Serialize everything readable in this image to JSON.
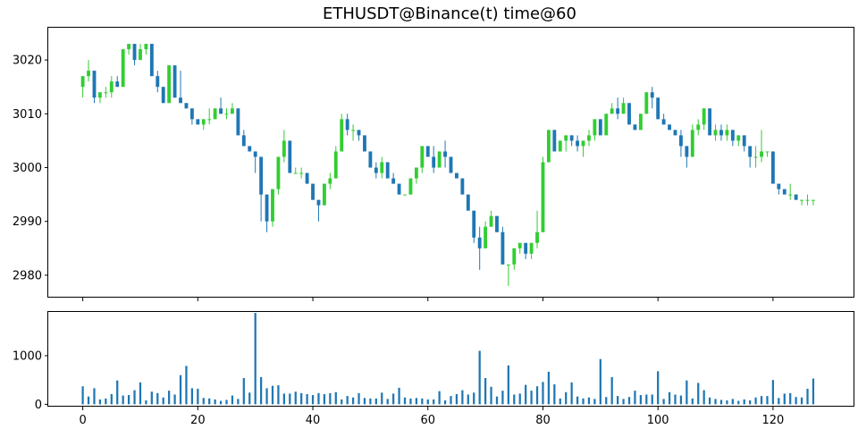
{
  "chart_data": {
    "type": "candlestick",
    "title": "ETHUSDT@Binance(t) time@60",
    "colors": {
      "up": "#32cd32",
      "down": "#1f77b4",
      "volume": "#1f77b4"
    },
    "price_axis": {
      "ylim": [
        2976,
        3026
      ],
      "ticks": [
        2980,
        2990,
        3000,
        3010,
        3020
      ]
    },
    "volume_axis": {
      "ylim": [
        -30,
        1900
      ],
      "ticks": [
        0,
        1000
      ]
    },
    "x_axis": {
      "xlim": [
        -6,
        134
      ],
      "ticks": [
        0,
        20,
        40,
        60,
        80,
        100,
        120
      ]
    },
    "grid": false,
    "candles_ohlc": [
      [
        3015,
        3017,
        3013,
        3017
      ],
      [
        3017,
        3020,
        3016,
        3018
      ],
      [
        3018,
        3018,
        3012,
        3013
      ],
      [
        3013,
        3014,
        3012,
        3014
      ],
      [
        3014,
        3015,
        3013,
        3014
      ],
      [
        3014,
        3017,
        3013,
        3016
      ],
      [
        3016,
        3017,
        3015,
        3015
      ],
      [
        3015,
        3022,
        3015,
        3022
      ],
      [
        3022,
        3023,
        3021,
        3023
      ],
      [
        3023,
        3023,
        3019,
        3020
      ],
      [
        3020,
        3023,
        3020,
        3022
      ],
      [
        3022,
        3023,
        3021,
        3023
      ],
      [
        3023,
        3023,
        3017,
        3017
      ],
      [
        3017,
        3018,
        3014,
        3015
      ],
      [
        3015,
        3015,
        3012,
        3012
      ],
      [
        3012,
        3019,
        3012,
        3019
      ],
      [
        3019,
        3019,
        3013,
        3013
      ],
      [
        3013,
        3018,
        3012,
        3012
      ],
      [
        3012,
        3012,
        3011,
        3011
      ],
      [
        3011,
        3011,
        3008,
        3009
      ],
      [
        3009,
        3009,
        3008,
        3008
      ],
      [
        3008,
        3009,
        3007,
        3009
      ],
      [
        3009,
        3011,
        3008,
        3009
      ],
      [
        3009,
        3011,
        3009,
        3011
      ],
      [
        3011,
        3013,
        3010,
        3010
      ],
      [
        3010,
        3011,
        3009,
        3010
      ],
      [
        3010,
        3012,
        3010,
        3011
      ],
      [
        3011,
        3011,
        3006,
        3006
      ],
      [
        3006,
        3007,
        3004,
        3004
      ],
      [
        3004,
        3004,
        3003,
        3003
      ],
      [
        3003,
        3003,
        2999,
        3002
      ],
      [
        3002,
        3002,
        2990,
        2995
      ],
      [
        2995,
        2995,
        2988,
        2990
      ],
      [
        2990,
        2996,
        2989,
        2996
      ],
      [
        2996,
        3002,
        2995,
        3002
      ],
      [
        3002,
        3007,
        3001,
        3005
      ],
      [
        3005,
        3005,
        2999,
        2999
      ],
      [
        2999,
        3000,
        2999,
        2999
      ],
      [
        2999,
        3000,
        2998,
        2999
      ],
      [
        2999,
        2999,
        2997,
        2997
      ],
      [
        2997,
        2997,
        2994,
        2994
      ],
      [
        2994,
        2994,
        2990,
        2993
      ],
      [
        2993,
        2997,
        2993,
        2997
      ],
      [
        2997,
        2999,
        2996,
        2998
      ],
      [
        2998,
        3004,
        2998,
        3003
      ],
      [
        3003,
        3010,
        3003,
        3009
      ],
      [
        3009,
        3010,
        3006,
        3007
      ],
      [
        3007,
        3008,
        3005,
        3007
      ],
      [
        3007,
        3007,
        3005,
        3006
      ],
      [
        3006,
        3006,
        3003,
        3003
      ],
      [
        3003,
        3003,
        3000,
        3000
      ],
      [
        3000,
        3001,
        2998,
        2999
      ],
      [
        2999,
        3002,
        2998,
        3001
      ],
      [
        3001,
        3001,
        2998,
        2998
      ],
      [
        2998,
        2999,
        2997,
        2997
      ],
      [
        2997,
        2997,
        2995,
        2995
      ],
      [
        2995,
        2995,
        2995,
        2995
      ],
      [
        2995,
        2998,
        2995,
        2998
      ],
      [
        2998,
        3000,
        2997,
        3000
      ],
      [
        3000,
        3004,
        2999,
        3004
      ],
      [
        3004,
        3004,
        3002,
        3002
      ],
      [
        3002,
        3004,
        2999,
        3000
      ],
      [
        3000,
        3003,
        3000,
        3003
      ],
      [
        3003,
        3005,
        3000,
        3002
      ],
      [
        3002,
        3002,
        2999,
        2999
      ],
      [
        2999,
        2999,
        2998,
        2998
      ],
      [
        2998,
        2998,
        2995,
        2995
      ],
      [
        2995,
        2995,
        2992,
        2992
      ],
      [
        2992,
        2992,
        2986,
        2987
      ],
      [
        2987,
        2989,
        2981,
        2985
      ],
      [
        2985,
        2990,
        2985,
        2989
      ],
      [
        2989,
        2992,
        2990,
        2991
      ],
      [
        2991,
        2991,
        2988,
        2988
      ],
      [
        2988,
        2989,
        2982,
        2982
      ],
      [
        2982,
        2982,
        2978,
        2982
      ],
      [
        2982,
        2985,
        2981,
        2985
      ],
      [
        2985,
        2986,
        2984,
        2986
      ],
      [
        2986,
        2986,
        2983,
        2984
      ],
      [
        2984,
        2986,
        2983,
        2986
      ],
      [
        2986,
        2992,
        2985,
        2988
      ],
      [
        2988,
        3002,
        2988,
        3001
      ],
      [
        3001,
        3007,
        3001,
        3007
      ],
      [
        3007,
        3007,
        3003,
        3003
      ],
      [
        3003,
        3005,
        3003,
        3005
      ],
      [
        3005,
        3006,
        3003,
        3006
      ],
      [
        3006,
        3006,
        3004,
        3005
      ],
      [
        3005,
        3006,
        3003,
        3004
      ],
      [
        3004,
        3005,
        3002,
        3005
      ],
      [
        3005,
        3007,
        3004,
        3006
      ],
      [
        3006,
        3009,
        3005,
        3009
      ],
      [
        3009,
        3009,
        3006,
        3006
      ],
      [
        3006,
        3010,
        3006,
        3010
      ],
      [
        3010,
        3012,
        3010,
        3011
      ],
      [
        3011,
        3013,
        3009,
        3010
      ],
      [
        3010,
        3013,
        3010,
        3012
      ],
      [
        3012,
        3012,
        3008,
        3008
      ],
      [
        3008,
        3008,
        3007,
        3007
      ],
      [
        3007,
        3010,
        3007,
        3010
      ],
      [
        3010,
        3014,
        3010,
        3014
      ],
      [
        3014,
        3015,
        3011,
        3013
      ],
      [
        3013,
        3013,
        3009,
        3009
      ],
      [
        3009,
        3010,
        3008,
        3008
      ],
      [
        3008,
        3008,
        3007,
        3007
      ],
      [
        3007,
        3007,
        3006,
        3006
      ],
      [
        3006,
        3007,
        3002,
        3004
      ],
      [
        3004,
        3004,
        3000,
        3002
      ],
      [
        3002,
        3008,
        3002,
        3007
      ],
      [
        3007,
        3009,
        3006,
        3008
      ],
      [
        3008,
        3011,
        3007,
        3011
      ],
      [
        3011,
        3011,
        3006,
        3006
      ],
      [
        3006,
        3008,
        3005,
        3007
      ],
      [
        3007,
        3008,
        3005,
        3006
      ],
      [
        3006,
        3008,
        3005,
        3007
      ],
      [
        3007,
        3007,
        3004,
        3005
      ],
      [
        3005,
        3006,
        3004,
        3006
      ],
      [
        3006,
        3006,
        3003,
        3004
      ],
      [
        3004,
        3004,
        3000,
        3002
      ],
      [
        3002,
        3004,
        3000,
        3002
      ],
      [
        3002,
        3007,
        3001,
        3003
      ],
      [
        3003,
        3003,
        3002,
        3003
      ],
      [
        3003,
        3003,
        2997,
        2997
      ],
      [
        2997,
        2997,
        2995,
        2996
      ],
      [
        2996,
        2996,
        2995,
        2995
      ],
      [
        2995,
        2997,
        2994,
        2995
      ],
      [
        2995,
        2995,
        2994,
        2994
      ],
      [
        2994,
        2994,
        2993,
        2994
      ],
      [
        2994,
        2995,
        2993,
        2994
      ],
      [
        2994,
        2994,
        2993,
        2994
      ]
    ],
    "volume": [
      370,
      160,
      330,
      100,
      120,
      210,
      490,
      180,
      190,
      290,
      450,
      80,
      260,
      230,
      140,
      280,
      200,
      600,
      790,
      330,
      320,
      130,
      120,
      100,
      70,
      90,
      180,
      110,
      540,
      240,
      1880,
      560,
      330,
      380,
      390,
      220,
      220,
      260,
      230,
      210,
      190,
      230,
      210,
      230,
      250,
      100,
      170,
      140,
      230,
      130,
      120,
      120,
      240,
      110,
      220,
      340,
      140,
      120,
      130,
      120,
      100,
      100,
      270,
      80,
      170,
      210,
      290,
      200,
      240,
      1100,
      540,
      360,
      160,
      280,
      800,
      200,
      220,
      400,
      280,
      370,
      460,
      670,
      410,
      120,
      250,
      450,
      160,
      120,
      140,
      110,
      930,
      150,
      560,
      170,
      110,
      150,
      280,
      190,
      200,
      200,
      680,
      110,
      250,
      200,
      180,
      490,
      120,
      440,
      290,
      140,
      110,
      90,
      80,
      110,
      70,
      100,
      80,
      140,
      170,
      170,
      500,
      130,
      220,
      230,
      150,
      140,
      320,
      530
    ]
  }
}
